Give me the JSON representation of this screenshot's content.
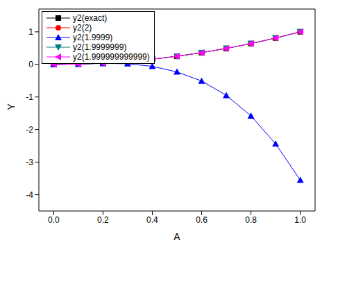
{
  "chart_data": {
    "type": "line",
    "x_label": "A",
    "y_label": "Y",
    "x": [
      0,
      0.1,
      0.2,
      0.3,
      0.4,
      0.5,
      0.6,
      0.7,
      0.8,
      0.9,
      1.0
    ],
    "xlim": [
      -0.06,
      1.06
    ],
    "xticks": [
      {
        "value": 0,
        "label": "0.0"
      },
      {
        "value": 0.2,
        "label": "0.2"
      },
      {
        "value": 0.4,
        "label": "0.4"
      },
      {
        "value": 0.6,
        "label": "0.6"
      },
      {
        "value": 0.8,
        "label": "0.8"
      },
      {
        "value": 1.0,
        "label": "1.0"
      }
    ],
    "ylim": [
      -4.5,
      1.7
    ],
    "yticks": [
      -4,
      -3,
      -2,
      -1,
      0,
      1
    ],
    "legend": "upper left",
    "series": [
      {
        "name": "y2(exact)",
        "color": "#000000",
        "marker": "square",
        "values": [
          0,
          0.01,
          0.04,
          0.09,
          0.16,
          0.25,
          0.36,
          0.49,
          0.64,
          0.81,
          1.0
        ]
      },
      {
        "name": "y2(2)",
        "color": "#ff0000",
        "marker": "circle",
        "values": [
          0,
          0.01,
          0.04,
          0.09,
          0.16,
          0.25,
          0.36,
          0.49,
          0.64,
          0.81,
          1.0
        ]
      },
      {
        "name": "y2(1.9999)",
        "color": "#0000ff",
        "marker": "triangle",
        "values": [
          0,
          0.01,
          0.03,
          0.02,
          -0.06,
          -0.23,
          -0.51,
          -0.95,
          -1.58,
          -2.44,
          -3.55
        ]
      },
      {
        "name": "y2(1.9999999)",
        "color": "#008080",
        "marker": "triangle-down",
        "values": [
          0,
          0.01,
          0.04,
          0.09,
          0.16,
          0.25,
          0.36,
          0.49,
          0.64,
          0.81,
          1.0
        ]
      },
      {
        "name": "y2(1.999999999999)",
        "color": "#ff00ff",
        "marker": "triangle-left",
        "values": [
          0,
          0.01,
          0.04,
          0.09,
          0.16,
          0.25,
          0.36,
          0.49,
          0.64,
          0.81,
          1.0
        ]
      }
    ]
  }
}
